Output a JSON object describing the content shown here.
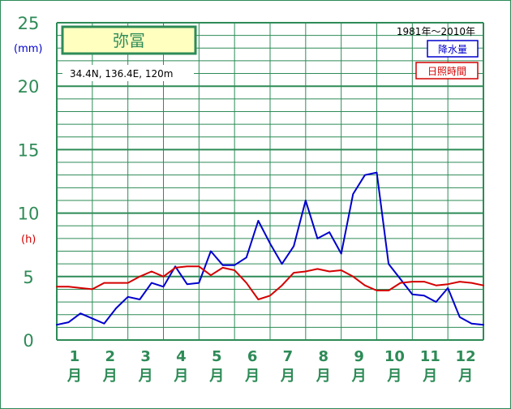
{
  "colors": {
    "grid": "#2e8b57",
    "precipitation": "#0000cd",
    "sunshine": "#d40000",
    "station_box_fill": "#ffffc0"
  },
  "chart_data": {
    "type": "line",
    "station": "弥冨",
    "location": "34.4N, 136.4E, 120m",
    "period": "1981年〜2010年",
    "y_unit_left": "(mm)",
    "y_unit_right": "(h)",
    "ylim": [
      0,
      25
    ],
    "yticks": [
      "0",
      "5",
      "10",
      "15",
      "20",
      "25"
    ],
    "categories": [
      [
        "1",
        "月"
      ],
      [
        "2",
        "月"
      ],
      [
        "3",
        "月"
      ],
      [
        "4",
        "月"
      ],
      [
        "5",
        "月"
      ],
      [
        "6",
        "月"
      ],
      [
        "7",
        "月"
      ],
      [
        "8",
        "月"
      ],
      [
        "9",
        "月"
      ],
      [
        "10",
        "月"
      ],
      [
        "11",
        "月"
      ],
      [
        "12",
        "月"
      ]
    ],
    "xlim": [
      0,
      36
    ],
    "grid": true,
    "series": [
      {
        "name": "降水量",
        "color": "#0000cd",
        "x": [
          0,
          1,
          2,
          3,
          4,
          5,
          6,
          7,
          8,
          9,
          10,
          11,
          12,
          13,
          14,
          15,
          16,
          17,
          18,
          19,
          20,
          21,
          22,
          23,
          24,
          25,
          26,
          27,
          28,
          29,
          30,
          31,
          32,
          33,
          34,
          35,
          36
        ],
        "values": [
          1.2,
          1.4,
          2.1,
          1.7,
          1.3,
          2.5,
          3.4,
          3.2,
          4.5,
          4.2,
          5.8,
          4.4,
          4.5,
          7.0,
          5.9,
          5.9,
          6.5,
          9.4,
          7.6,
          6.0,
          7.4,
          11.0,
          8.0,
          8.5,
          6.8,
          11.5,
          13.0,
          13.2,
          6.0,
          4.8,
          3.6,
          3.5,
          3.0,
          4.1,
          1.8,
          1.3,
          1.2
        ]
      },
      {
        "name": "日照時間",
        "color": "#d40000",
        "x": [
          0,
          1,
          2,
          3,
          4,
          5,
          6,
          7,
          8,
          9,
          10,
          11,
          12,
          13,
          14,
          15,
          16,
          17,
          18,
          19,
          20,
          21,
          22,
          23,
          24,
          25,
          26,
          27,
          28,
          29,
          30,
          31,
          32,
          33,
          34,
          35,
          36
        ],
        "values": [
          4.2,
          4.2,
          4.1,
          4.0,
          4.5,
          4.5,
          4.5,
          5.0,
          5.4,
          5.0,
          5.7,
          5.8,
          5.8,
          5.1,
          5.7,
          5.5,
          4.5,
          3.2,
          3.5,
          4.3,
          5.3,
          5.4,
          5.6,
          5.4,
          5.5,
          5.0,
          4.3,
          3.9,
          3.9,
          4.5,
          4.6,
          4.6,
          4.3,
          4.4,
          4.6,
          4.5,
          4.3
        ]
      }
    ]
  }
}
